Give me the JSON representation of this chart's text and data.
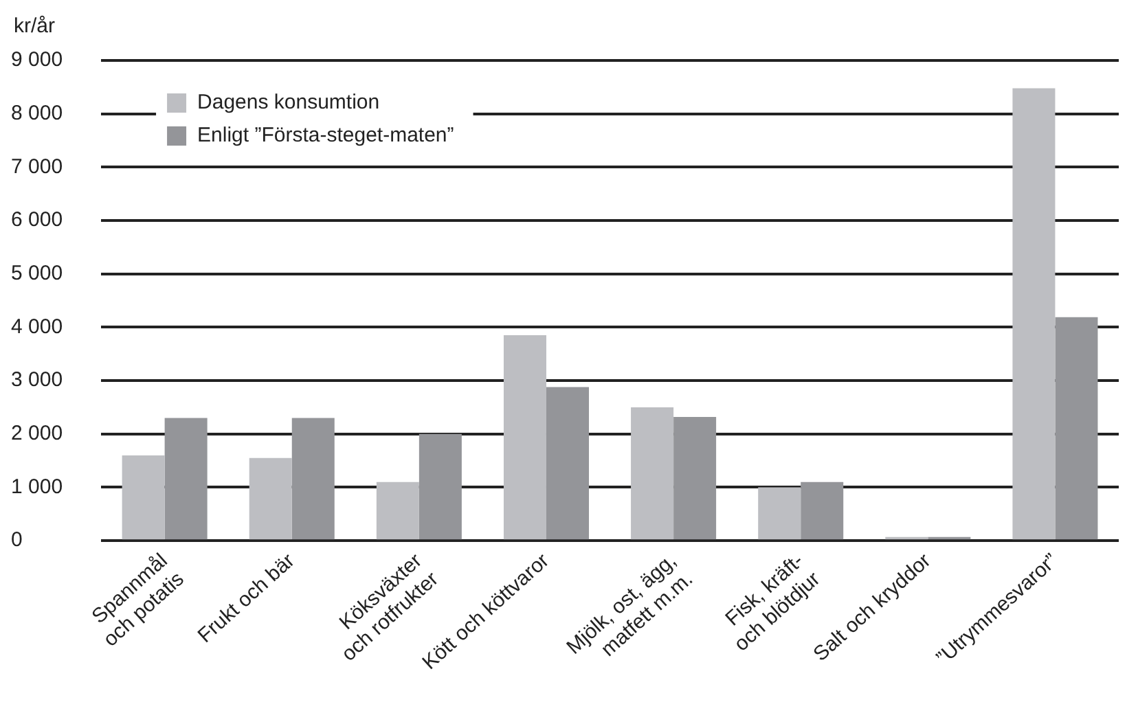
{
  "chart_data": {
    "type": "bar",
    "ylabel": "kr/år",
    "categories": [
      "Spannmål\noch potatis",
      "Frukt och bär",
      "Köksväxter\noch rotfrukter",
      "Kött och köttvaror",
      "Mjölk, ost, ägg,\nmatfett m.m.",
      "Fisk, kräft-\noch blötdjur",
      "Salt och kryddor",
      "”Utrymmesvaror”"
    ],
    "series": [
      {
        "name": "Dagens konsumtion",
        "color": "#bdbec2",
        "values": [
          1600,
          1550,
          1100,
          3850,
          2500,
          1000,
          70,
          8480
        ]
      },
      {
        "name": "Enligt ”Första-steget-maten”",
        "color": "#949599",
        "values": [
          2300,
          2300,
          2000,
          2880,
          2320,
          1100,
          70,
          4190
        ]
      }
    ],
    "ylim": [
      0,
      9000
    ],
    "yticks": [
      0,
      {
        "value": 1000,
        "label": "1 000"
      },
      {
        "value": 2000,
        "label": "2 000"
      },
      {
        "value": 3000,
        "label": "3 000"
      },
      {
        "value": 4000,
        "label": "4 000"
      },
      {
        "value": 5000,
        "label": "5 000"
      },
      {
        "value": 6000,
        "label": "6 000"
      },
      {
        "value": 7000,
        "label": "7 000"
      },
      {
        "value": 8000,
        "label": "8 000"
      },
      {
        "value": 9000,
        "label": "9 000"
      }
    ],
    "grid": "y",
    "legend": "top left"
  }
}
